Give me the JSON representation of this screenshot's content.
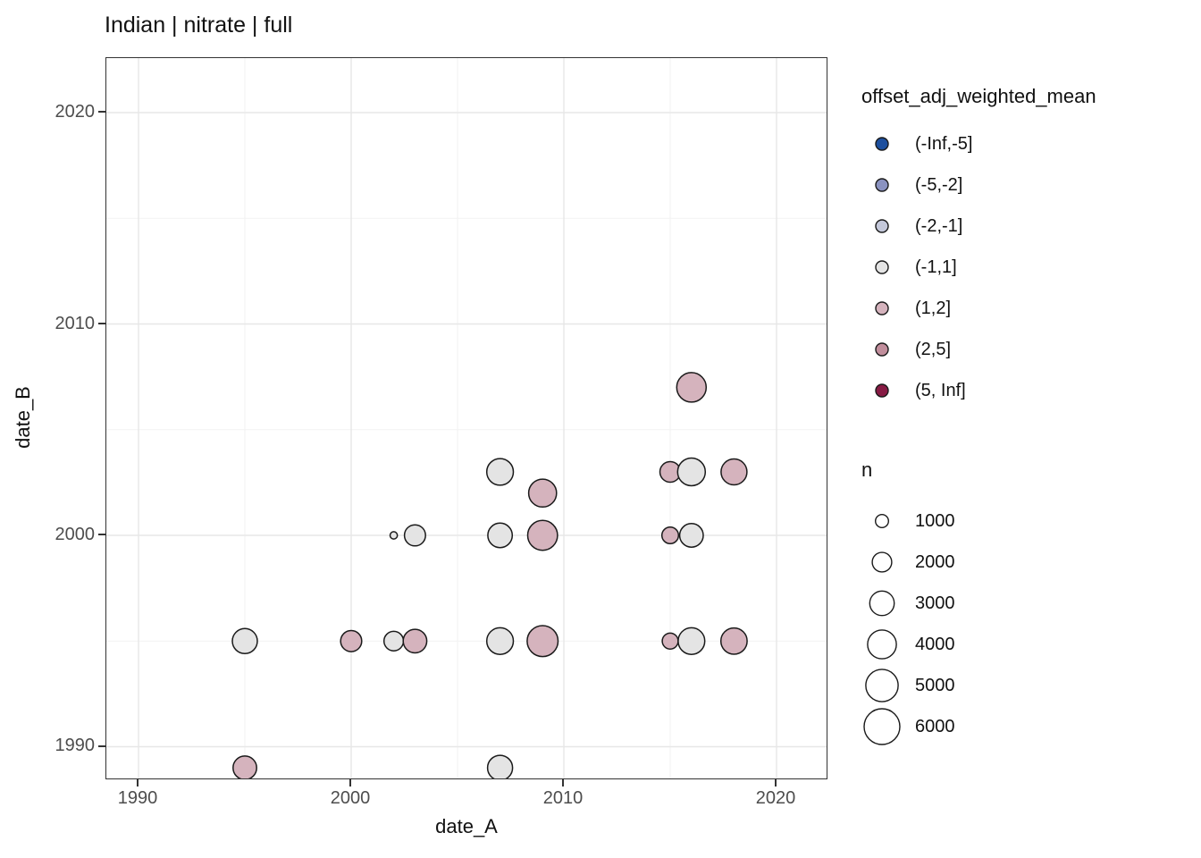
{
  "title": "Indian | nitrate | full",
  "axes": {
    "x": {
      "label": "date_A",
      "ticks": [
        1990,
        2000,
        2010,
        2020
      ],
      "tick_labels": [
        "1990",
        "2000",
        "2010",
        "2020"
      ],
      "minor_ticks": [
        1995,
        2005,
        2015
      ]
    },
    "y": {
      "label": "date_B",
      "ticks": [
        2020,
        2010,
        2000,
        1990
      ],
      "tick_labels": [
        "2020",
        "2010",
        "2000",
        "1990"
      ],
      "minor_ticks": [
        2015,
        2005,
        1995
      ]
    }
  },
  "legend_color": {
    "title": "offset_adj_weighted_mean",
    "items": [
      {
        "label": "(-Inf,-5]",
        "color": "#1d4f9e"
      },
      {
        "label": "(-5,-2]",
        "color": "#8a92c0"
      },
      {
        "label": "(-2,-1]",
        "color": "#c4c8da"
      },
      {
        "label": "(-1,1]",
        "color": "#e4e4e4"
      },
      {
        "label": "(1,2]",
        "color": "#d5b3bd"
      },
      {
        "label": "(2,5]",
        "color": "#c18e9c"
      },
      {
        "label": "(5, Inf]",
        "color": "#871b44"
      }
    ]
  },
  "legend_size": {
    "title": "n",
    "items": [
      {
        "label": "1000",
        "value": 1000
      },
      {
        "label": "2000",
        "value": 2000
      },
      {
        "label": "3000",
        "value": 3000
      },
      {
        "label": "4000",
        "value": 4000
      },
      {
        "label": "5000",
        "value": 5000
      },
      {
        "label": "6000",
        "value": 6000
      }
    ]
  },
  "chart_data": {
    "type": "scatter",
    "title": "Indian | nitrate | full",
    "xlabel": "date_A",
    "ylabel": "date_B",
    "xlim": [
      1988.4,
      2022.4
    ],
    "ylim": [
      1988.6,
      2022.6
    ],
    "grid": true,
    "legend_position": "right",
    "color_field": "offset_adj_weighted_mean",
    "size_field": "n",
    "points": [
      {
        "date_A": 1995,
        "date_B": 1989,
        "bin": "(1,2]",
        "n": 2800
      },
      {
        "date_A": 1995,
        "date_B": 1995,
        "bin": "(-1,1]",
        "n": 3100
      },
      {
        "date_A": 2000,
        "date_B": 1995,
        "bin": "(1,2]",
        "n": 2300
      },
      {
        "date_A": 2002,
        "date_B": 1995,
        "bin": "(-1,1]",
        "n": 2000
      },
      {
        "date_A": 2002,
        "date_B": 2000,
        "bin": "(-1,1]",
        "n": 400
      },
      {
        "date_A": 2003,
        "date_B": 1995,
        "bin": "(1,2]",
        "n": 2800
      },
      {
        "date_A": 2003,
        "date_B": 2000,
        "bin": "(-1,1]",
        "n": 2300
      },
      {
        "date_A": 2007,
        "date_B": 1989,
        "bin": "(-1,1]",
        "n": 3100
      },
      {
        "date_A": 2007,
        "date_B": 1995,
        "bin": "(-1,1]",
        "n": 3500
      },
      {
        "date_A": 2007,
        "date_B": 2000,
        "bin": "(-1,1]",
        "n": 3000
      },
      {
        "date_A": 2007,
        "date_B": 2003,
        "bin": "(-1,1]",
        "n": 3500
      },
      {
        "date_A": 2009,
        "date_B": 1995,
        "bin": "(1,2]",
        "n": 4600
      },
      {
        "date_A": 2009,
        "date_B": 2000,
        "bin": "(1,2]",
        "n": 4300
      },
      {
        "date_A": 2009,
        "date_B": 2002,
        "bin": "(1,2]",
        "n": 3800
      },
      {
        "date_A": 2015,
        "date_B": 1995,
        "bin": "(1,2]",
        "n": 1400
      },
      {
        "date_A": 2015,
        "date_B": 2000,
        "bin": "(1,2]",
        "n": 1500
      },
      {
        "date_A": 2015,
        "date_B": 2003,
        "bin": "(1,2]",
        "n": 2200
      },
      {
        "date_A": 2016,
        "date_B": 1995,
        "bin": "(-1,1]",
        "n": 3500
      },
      {
        "date_A": 2016,
        "date_B": 2000,
        "bin": "(-1,1]",
        "n": 2800
      },
      {
        "date_A": 2016,
        "date_B": 2003,
        "bin": "(-1,1]",
        "n": 3750
      },
      {
        "date_A": 2016,
        "date_B": 2007,
        "bin": "(1,2]",
        "n": 4200
      },
      {
        "date_A": 2018,
        "date_B": 1995,
        "bin": "(1,2]",
        "n": 3400
      },
      {
        "date_A": 2018,
        "date_B": 2003,
        "bin": "(1,2]",
        "n": 3300
      }
    ]
  }
}
